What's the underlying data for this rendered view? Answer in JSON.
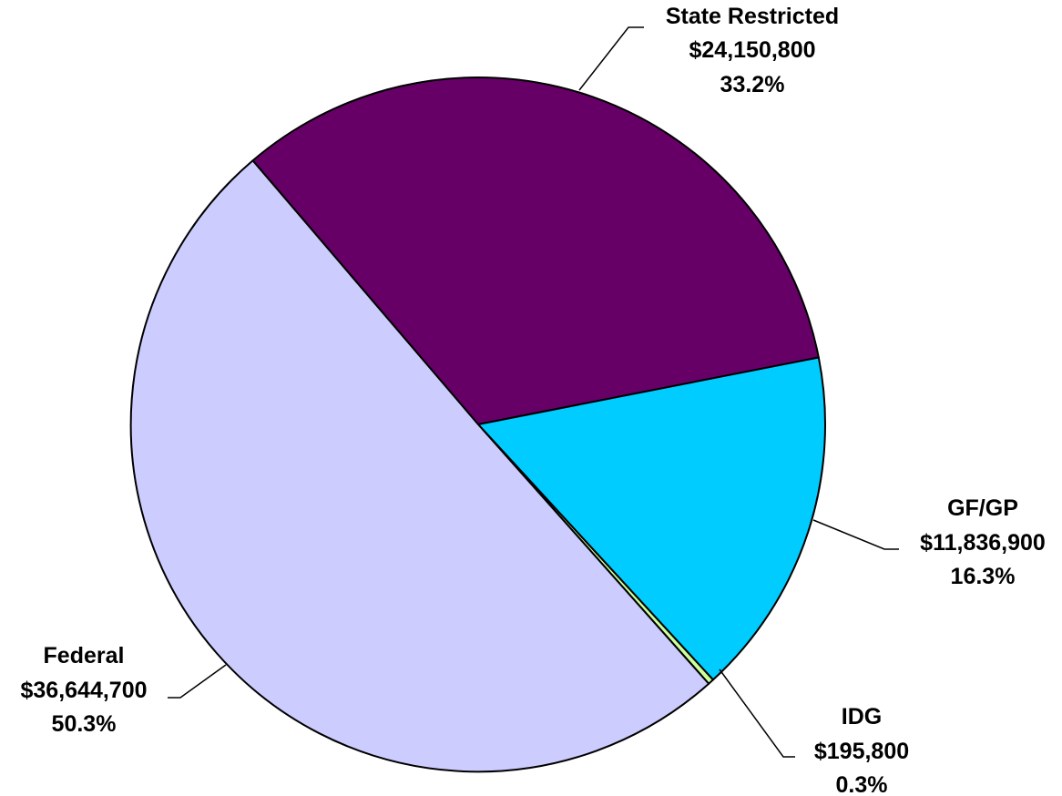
{
  "chart_data": {
    "type": "pie",
    "title": "",
    "slices": [
      {
        "name": "State Restricted",
        "amount": "$24,150,800",
        "percent": "33.2%",
        "value": 24150800,
        "color": "#660066"
      },
      {
        "name": "GF/GP",
        "amount": "$11,836,900",
        "percent": "16.3%",
        "value": 11836900,
        "color": "#00ccff"
      },
      {
        "name": "IDG",
        "amount": "$195,800",
        "percent": "0.3%",
        "value": 195800,
        "color": "#ccff99"
      },
      {
        "name": "Federal",
        "amount": "$36,644,700",
        "percent": "50.3%",
        "value": 36644700,
        "color": "#ccccff"
      }
    ]
  }
}
